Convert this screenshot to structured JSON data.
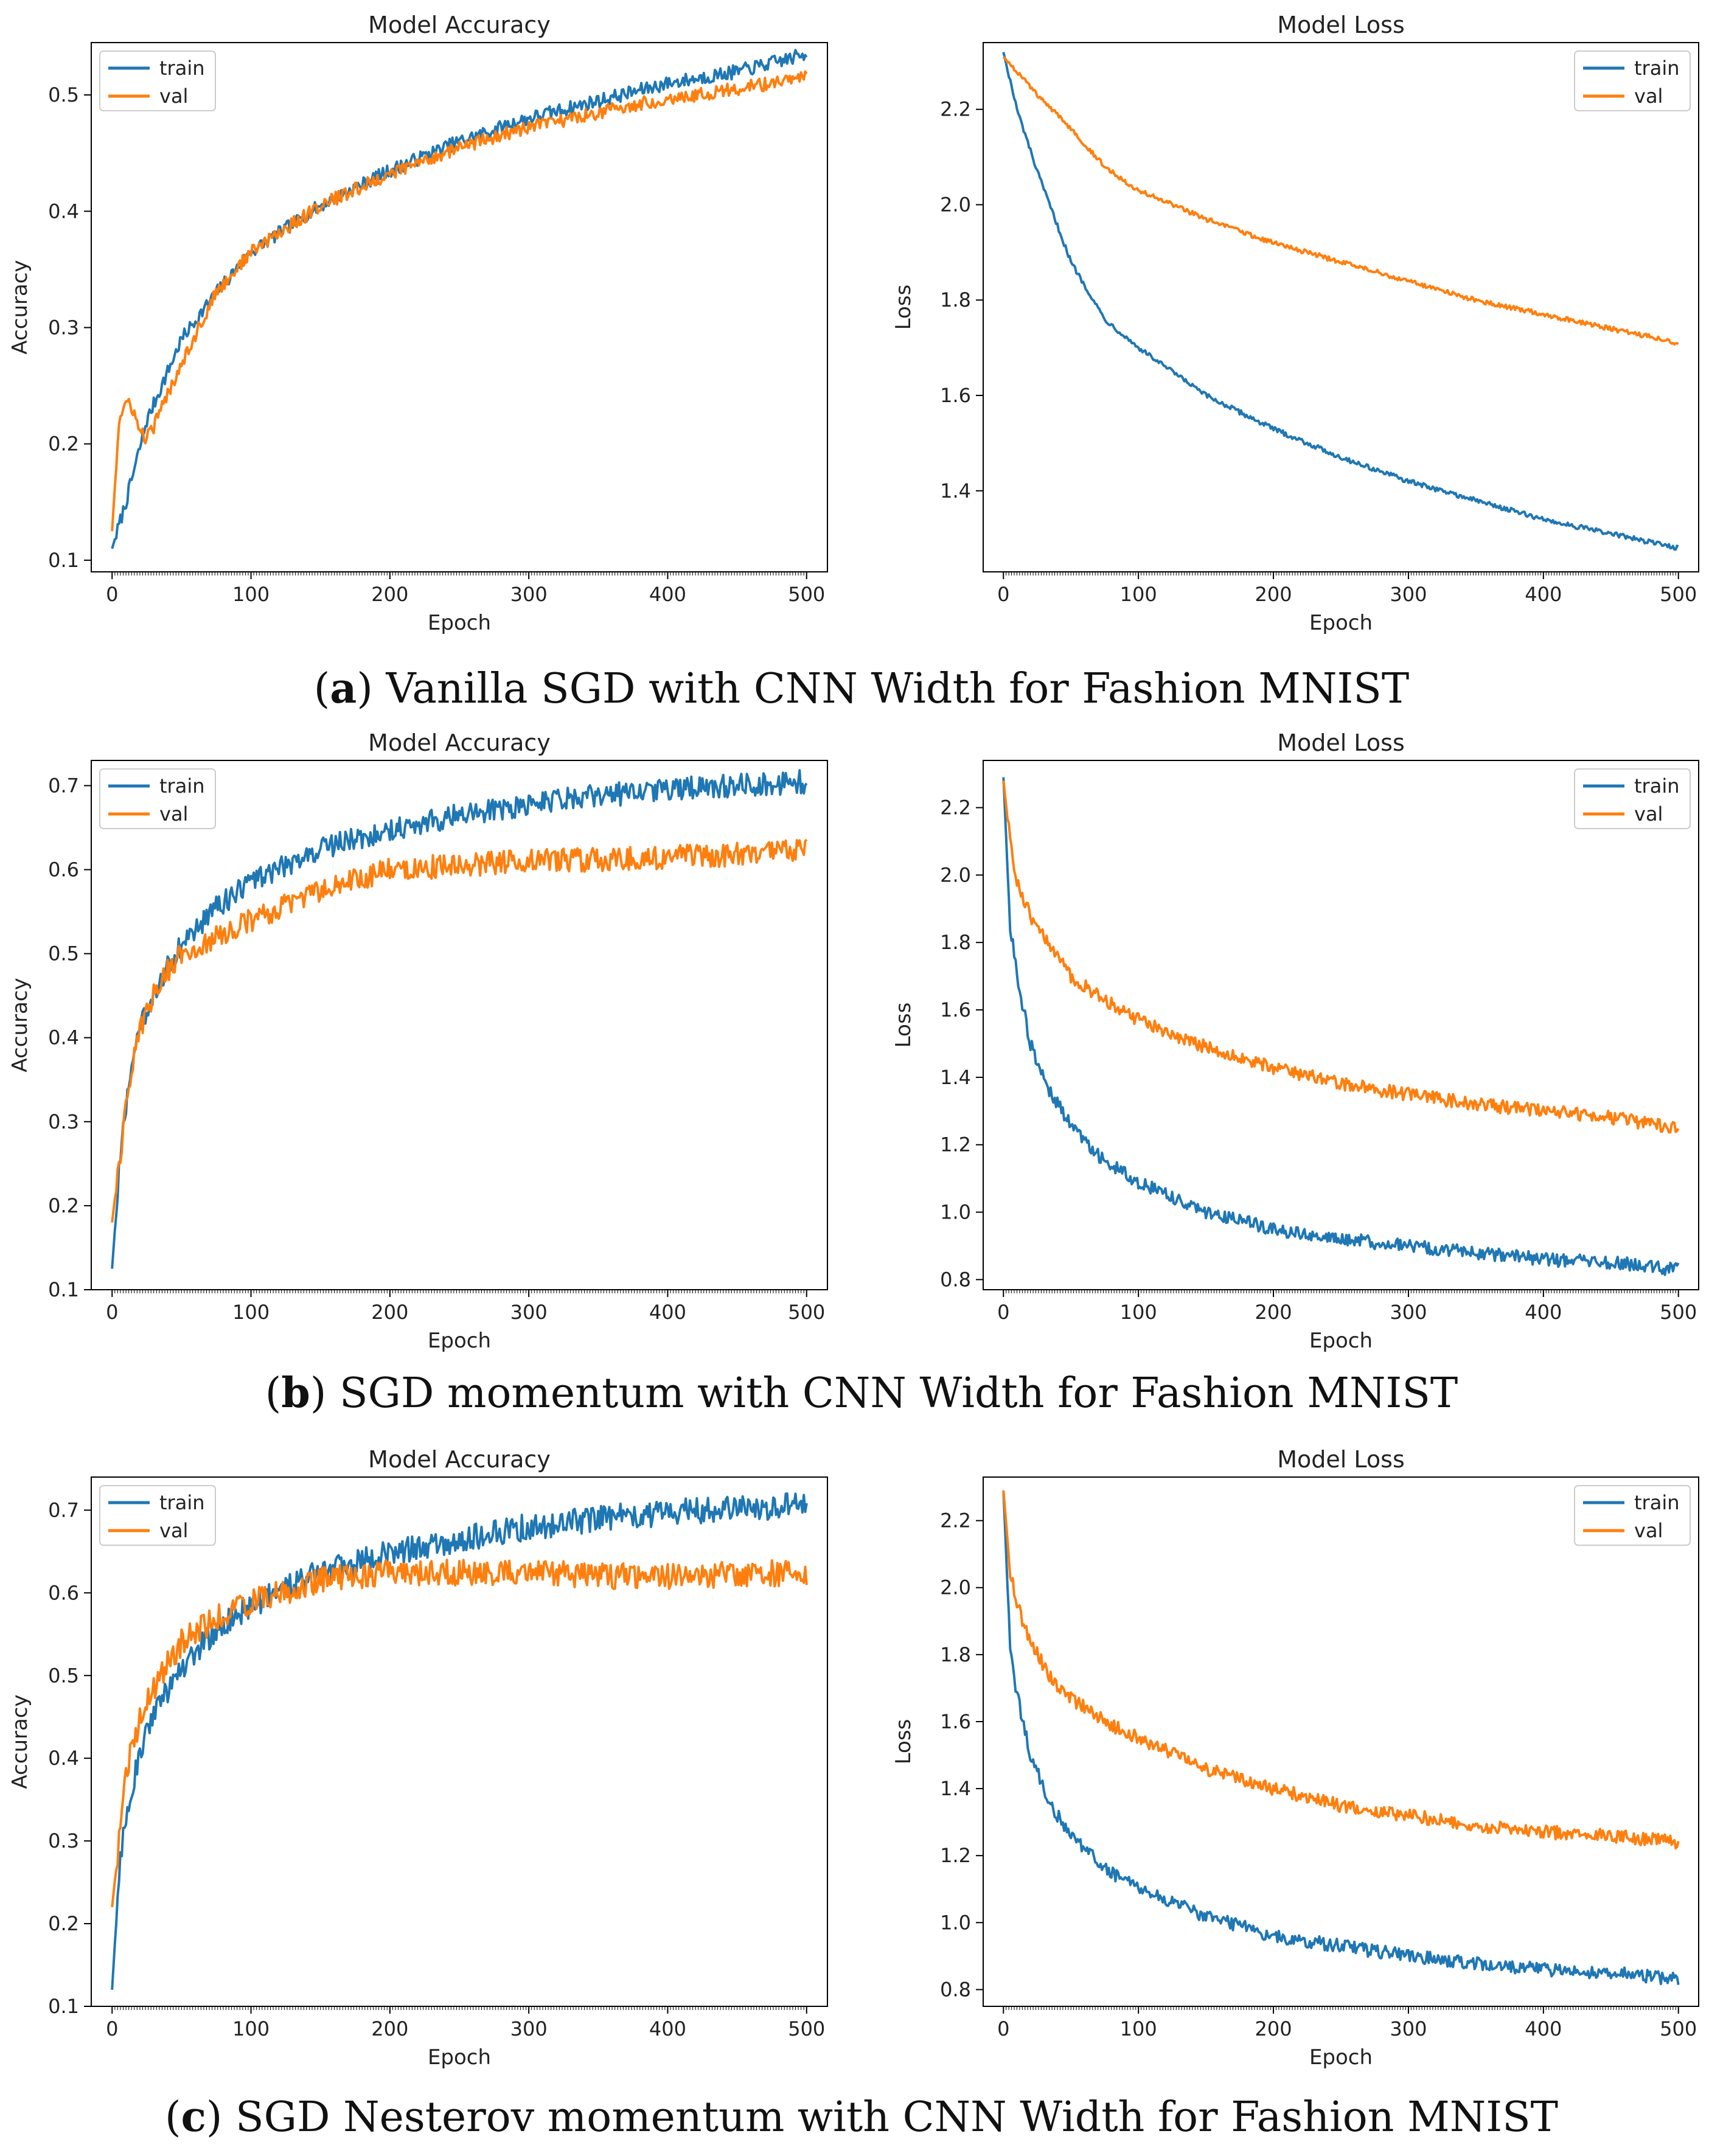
{
  "colors": {
    "train": "#1f77b4",
    "val": "#ff7f0e",
    "axis": "#000000"
  },
  "captions": [
    {
      "letter": "a",
      "text": "Vanilla SGD with CNN Width for Fashion MNIST"
    },
    {
      "letter": "b",
      "text": "SGD momentum with CNN Width for Fashion MNIST"
    },
    {
      "letter": "c",
      "text": "SGD Nesterov momentum with CNN Width for Fashion MNIST"
    }
  ],
  "chart_data": [
    {
      "id": "a-acc",
      "type": "line",
      "title": "Model Accuracy",
      "xlabel": "Epoch",
      "ylabel": "Accuracy",
      "xlim": [
        -15,
        515
      ],
      "ylim": [
        0.09,
        0.545
      ],
      "xticks": [
        0,
        100,
        200,
        300,
        400,
        500
      ],
      "yticks": [
        0.1,
        0.2,
        0.3,
        0.4,
        0.5
      ],
      "ytick_labels": [
        "0.1",
        "0.2",
        "0.3",
        "0.4",
        "0.5"
      ],
      "legend": "top-left",
      "noise": 0.006,
      "series": [
        {
          "name": "train",
          "x": [
            0,
            10,
            25,
            50,
            75,
            100,
            150,
            200,
            250,
            300,
            350,
            400,
            450,
            500
          ],
          "values": [
            0.11,
            0.15,
            0.22,
            0.29,
            0.33,
            0.365,
            0.405,
            0.435,
            0.46,
            0.48,
            0.495,
            0.51,
            0.52,
            0.535
          ]
        },
        {
          "name": "val",
          "x": [
            0,
            5,
            10,
            15,
            20,
            25,
            30,
            50,
            75,
            100,
            150,
            200,
            250,
            300,
            350,
            400,
            450,
            500
          ],
          "values": [
            0.125,
            0.22,
            0.235,
            0.23,
            0.21,
            0.205,
            0.215,
            0.27,
            0.33,
            0.365,
            0.405,
            0.432,
            0.455,
            0.472,
            0.485,
            0.497,
            0.505,
            0.515
          ]
        }
      ]
    },
    {
      "id": "a-loss",
      "type": "line",
      "title": "Model Loss",
      "xlabel": "Epoch",
      "ylabel": "Loss",
      "xlim": [
        -15,
        515
      ],
      "ylim": [
        1.23,
        2.34
      ],
      "xticks": [
        0,
        100,
        200,
        300,
        400,
        500
      ],
      "yticks": [
        1.4,
        1.6,
        1.8,
        2.0,
        2.2
      ],
      "ytick_labels": [
        "1.4",
        "1.6",
        "1.8",
        "2.0",
        "2.2"
      ],
      "legend": "top-right",
      "noise": 0.005,
      "series": [
        {
          "name": "train",
          "x": [
            0,
            10,
            25,
            50,
            75,
            100,
            150,
            200,
            250,
            300,
            350,
            400,
            450,
            500
          ],
          "values": [
            2.32,
            2.2,
            2.07,
            1.88,
            1.76,
            1.7,
            1.6,
            1.53,
            1.47,
            1.42,
            1.38,
            1.34,
            1.31,
            1.28
          ]
        },
        {
          "name": "val",
          "x": [
            0,
            10,
            25,
            50,
            75,
            100,
            150,
            200,
            250,
            300,
            350,
            400,
            450,
            500
          ],
          "values": [
            2.31,
            2.28,
            2.23,
            2.16,
            2.08,
            2.03,
            1.97,
            1.92,
            1.88,
            1.84,
            1.8,
            1.77,
            1.74,
            1.71
          ]
        }
      ]
    },
    {
      "id": "b-acc",
      "type": "line",
      "title": "Model Accuracy",
      "xlabel": "Epoch",
      "ylabel": "Accuracy",
      "xlim": [
        -15,
        515
      ],
      "ylim": [
        0.1,
        0.73
      ],
      "xticks": [
        0,
        100,
        200,
        300,
        400,
        500
      ],
      "yticks": [
        0.1,
        0.2,
        0.3,
        0.4,
        0.5,
        0.6,
        0.7
      ],
      "ytick_labels": [
        "0.1",
        "0.2",
        "0.3",
        "0.4",
        "0.5",
        "0.6",
        "0.7"
      ],
      "legend": "top-left",
      "noise": 0.014,
      "series": [
        {
          "name": "train",
          "x": [
            0,
            5,
            10,
            20,
            35,
            50,
            75,
            100,
            150,
            200,
            250,
            300,
            350,
            400,
            450,
            500
          ],
          "values": [
            0.125,
            0.24,
            0.32,
            0.41,
            0.47,
            0.51,
            0.555,
            0.585,
            0.625,
            0.648,
            0.665,
            0.678,
            0.688,
            0.695,
            0.7,
            0.705
          ]
        },
        {
          "name": "val",
          "x": [
            0,
            5,
            10,
            20,
            35,
            50,
            75,
            100,
            150,
            200,
            250,
            300,
            350,
            400,
            450,
            500
          ],
          "values": [
            0.18,
            0.25,
            0.32,
            0.41,
            0.47,
            0.5,
            0.52,
            0.54,
            0.575,
            0.6,
            0.605,
            0.61,
            0.612,
            0.615,
            0.618,
            0.625
          ]
        }
      ]
    },
    {
      "id": "b-loss",
      "type": "line",
      "title": "Model Loss",
      "xlabel": "Epoch",
      "ylabel": "Loss",
      "xlim": [
        -15,
        515
      ],
      "ylim": [
        0.77,
        2.34
      ],
      "xticks": [
        0,
        100,
        200,
        300,
        400,
        500
      ],
      "yticks": [
        0.8,
        1.0,
        1.2,
        1.4,
        1.6,
        1.8,
        2.0,
        2.2
      ],
      "ytick_labels": [
        "0.8",
        "1.0",
        "1.2",
        "1.4",
        "1.6",
        "1.8",
        "2.0",
        "2.2"
      ],
      "legend": "top-right",
      "noise": 0.02,
      "series": [
        {
          "name": "train",
          "x": [
            0,
            5,
            10,
            20,
            35,
            50,
            75,
            100,
            150,
            200,
            250,
            300,
            350,
            400,
            450,
            500
          ],
          "values": [
            2.29,
            1.85,
            1.7,
            1.5,
            1.35,
            1.26,
            1.15,
            1.09,
            1.0,
            0.95,
            0.92,
            0.9,
            0.88,
            0.86,
            0.85,
            0.83
          ]
        },
        {
          "name": "val",
          "x": [
            0,
            5,
            10,
            20,
            35,
            50,
            75,
            100,
            150,
            200,
            250,
            300,
            350,
            400,
            450,
            500
          ],
          "values": [
            2.28,
            2.1,
            1.98,
            1.88,
            1.78,
            1.7,
            1.63,
            1.57,
            1.49,
            1.43,
            1.38,
            1.35,
            1.32,
            1.3,
            1.28,
            1.25
          ]
        }
      ]
    },
    {
      "id": "c-acc",
      "type": "line",
      "title": "Model Accuracy",
      "xlabel": "Epoch",
      "ylabel": "Accuracy",
      "xlim": [
        -15,
        515
      ],
      "ylim": [
        0.1,
        0.74
      ],
      "xticks": [
        0,
        100,
        200,
        300,
        400,
        500
      ],
      "yticks": [
        0.1,
        0.2,
        0.3,
        0.4,
        0.5,
        0.6,
        0.7
      ],
      "ytick_labels": [
        "0.1",
        "0.2",
        "0.3",
        "0.4",
        "0.5",
        "0.6",
        "0.7"
      ],
      "legend": "top-left",
      "noise": 0.016,
      "series": [
        {
          "name": "train",
          "x": [
            0,
            5,
            10,
            20,
            35,
            50,
            75,
            100,
            150,
            200,
            250,
            300,
            350,
            400,
            450,
            500
          ],
          "values": [
            0.12,
            0.26,
            0.33,
            0.41,
            0.47,
            0.51,
            0.555,
            0.585,
            0.625,
            0.648,
            0.665,
            0.68,
            0.69,
            0.697,
            0.702,
            0.707
          ]
        },
        {
          "name": "val",
          "x": [
            0,
            5,
            10,
            20,
            35,
            50,
            75,
            100,
            150,
            200,
            250,
            300,
            350,
            400,
            450,
            500
          ],
          "values": [
            0.22,
            0.3,
            0.38,
            0.45,
            0.5,
            0.54,
            0.57,
            0.59,
            0.615,
            0.625,
            0.625,
            0.625,
            0.62,
            0.62,
            0.622,
            0.625
          ]
        }
      ]
    },
    {
      "id": "c-loss",
      "type": "line",
      "title": "Model Loss",
      "xlabel": "Epoch",
      "ylabel": "Loss",
      "xlim": [
        -15,
        515
      ],
      "ylim": [
        0.75,
        2.33
      ],
      "xticks": [
        0,
        100,
        200,
        300,
        400,
        500
      ],
      "yticks": [
        0.8,
        1.0,
        1.2,
        1.4,
        1.6,
        1.8,
        2.0,
        2.2
      ],
      "ytick_labels": [
        "0.8",
        "1.0",
        "1.2",
        "1.4",
        "1.6",
        "1.8",
        "2.0",
        "2.2"
      ],
      "legend": "top-right",
      "noise": 0.02,
      "series": [
        {
          "name": "train",
          "x": [
            0,
            5,
            10,
            20,
            35,
            50,
            75,
            100,
            150,
            200,
            250,
            300,
            350,
            400,
            450,
            500
          ],
          "values": [
            2.29,
            1.82,
            1.68,
            1.5,
            1.35,
            1.26,
            1.16,
            1.1,
            1.02,
            0.96,
            0.93,
            0.9,
            0.88,
            0.86,
            0.85,
            0.83
          ]
        },
        {
          "name": "val",
          "x": [
            0,
            5,
            10,
            20,
            35,
            50,
            75,
            100,
            150,
            200,
            250,
            300,
            350,
            400,
            450,
            500
          ],
          "values": [
            2.29,
            2.05,
            1.95,
            1.84,
            1.73,
            1.67,
            1.6,
            1.55,
            1.46,
            1.4,
            1.35,
            1.32,
            1.29,
            1.27,
            1.26,
            1.24
          ]
        }
      ]
    }
  ]
}
